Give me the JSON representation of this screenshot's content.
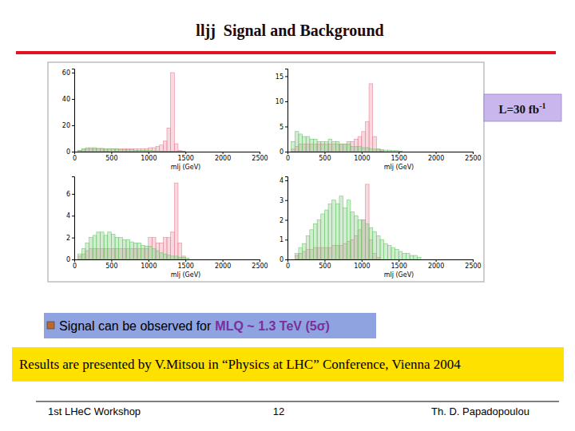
{
  "chart_data": [
    {
      "type": "histogram",
      "xlabel": "mlj (GeV)",
      "xlim": [
        0,
        2500
      ],
      "ylim": [
        0,
        63
      ],
      "xticks": [
        0,
        500,
        1000,
        1500,
        2000,
        2500
      ],
      "yticks": [
        0,
        20,
        40,
        60
      ],
      "bins": [
        0,
        50,
        100,
        150,
        200,
        250,
        300,
        350,
        400,
        450,
        500,
        550,
        600,
        650,
        700,
        750,
        800,
        850,
        900,
        950,
        1000,
        1050,
        1100,
        1150,
        1200,
        1250,
        1300,
        1350,
        1400,
        1450,
        1500,
        1550,
        1600,
        1650,
        1700,
        1750,
        1800,
        1850,
        1900,
        1950,
        2000,
        2050,
        2100,
        2150,
        2200,
        2250,
        2300,
        2350,
        2400,
        2450,
        2500
      ],
      "series": [
        {
          "color": "#e8899a",
          "values": [
            0,
            1,
            2,
            2,
            2,
            2,
            2,
            2,
            2,
            2,
            2,
            2,
            2,
            2,
            2,
            2,
            2,
            2,
            2,
            2,
            3,
            3,
            4,
            5,
            8,
            18,
            60,
            6,
            1,
            0.5,
            0,
            0,
            0,
            0,
            0,
            0,
            0,
            0,
            0,
            0,
            0,
            0,
            0,
            0,
            0,
            0,
            0,
            0,
            0,
            0
          ]
        },
        {
          "color": "#74c874",
          "values": [
            0,
            1,
            2,
            3,
            3,
            3,
            2.5,
            2.5,
            2,
            2,
            2,
            2,
            1.5,
            1.5,
            1.5,
            1.5,
            1,
            1,
            1,
            1,
            0.8,
            0.6,
            0.5,
            0.5,
            0.4,
            0.3,
            0.3,
            0.2,
            0.2,
            0.1,
            0,
            0,
            0,
            0,
            0,
            0,
            0,
            0,
            0,
            0,
            0,
            0,
            0,
            0,
            0,
            0,
            0,
            0,
            0,
            0
          ]
        }
      ]
    },
    {
      "type": "histogram",
      "xlabel": "mlj (GeV)",
      "xlim": [
        0,
        2500
      ],
      "ylim": [
        0,
        16.5
      ],
      "xticks": [
        0,
        500,
        1000,
        1500,
        2000,
        2500
      ],
      "yticks": [
        0,
        5,
        10,
        15
      ],
      "bins": [
        0,
        50,
        100,
        150,
        200,
        250,
        300,
        350,
        400,
        450,
        500,
        550,
        600,
        650,
        700,
        750,
        800,
        850,
        900,
        950,
        1000,
        1050,
        1100,
        1150,
        1200,
        1250,
        1300,
        1350,
        1400,
        1450,
        1500,
        1550,
        1600,
        1650,
        1700,
        1750,
        1800,
        1850,
        1900,
        1950,
        2000,
        2050,
        2100,
        2150,
        2200,
        2250,
        2300,
        2350,
        2400,
        2450,
        2500
      ],
      "series": [
        {
          "color": "#e8899a",
          "values": [
            0,
            0.5,
            1,
            1.5,
            1.5,
            1.5,
            1.5,
            1.5,
            1.5,
            1.5,
            1.5,
            1.5,
            1.5,
            1.5,
            1.5,
            1.5,
            2,
            2,
            2.5,
            3,
            4,
            6,
            13.5,
            3,
            0.5,
            0.3,
            0,
            0,
            0,
            0,
            0,
            0,
            0,
            0,
            0,
            0,
            0,
            0,
            0,
            0,
            0,
            0,
            0,
            0,
            0,
            0,
            0,
            0,
            0,
            0
          ]
        },
        {
          "color": "#74c874",
          "values": [
            0,
            2,
            4,
            3.5,
            3,
            3,
            2.5,
            2.5,
            2,
            2,
            2,
            2.5,
            2,
            2,
            1.5,
            1.5,
            1.5,
            1,
            1,
            1,
            0.8,
            0.8,
            0.6,
            0.5,
            0.5,
            0.4,
            0.3,
            0.3,
            0.2,
            0.2,
            0.1,
            0,
            0,
            0,
            0,
            0,
            0,
            0,
            0,
            0,
            0,
            0,
            0,
            0,
            0,
            0,
            0,
            0,
            0,
            0
          ]
        }
      ]
    },
    {
      "type": "histogram",
      "xlabel": "mlj (GeV)",
      "xlim": [
        0,
        2500
      ],
      "ylim": [
        0,
        7.6
      ],
      "xticks": [
        0,
        500,
        1000,
        1500,
        2000,
        2500
      ],
      "yticks": [
        0,
        2,
        4,
        6
      ],
      "bins": [
        0,
        50,
        100,
        150,
        200,
        250,
        300,
        350,
        400,
        450,
        500,
        550,
        600,
        650,
        700,
        750,
        800,
        850,
        900,
        950,
        1000,
        1050,
        1100,
        1150,
        1200,
        1250,
        1300,
        1350,
        1400,
        1450,
        1500,
        1550,
        1600,
        1650,
        1700,
        1750,
        1800,
        1850,
        1900,
        1950,
        2000,
        2050,
        2100,
        2150,
        2200,
        2250,
        2300,
        2350,
        2400,
        2450,
        2500
      ],
      "series": [
        {
          "color": "#e8899a",
          "values": [
            0,
            0.3,
            0.5,
            0.8,
            1,
            1,
            1,
            1,
            1,
            1,
            1,
            1,
            1,
            1,
            1,
            1,
            1,
            1,
            1,
            1,
            2,
            2,
            1.5,
            1.5,
            2,
            2,
            2.5,
            7,
            1.5,
            0.3,
            0,
            0,
            0,
            0,
            0,
            0,
            0,
            0,
            0,
            0,
            0,
            0,
            0,
            0,
            0,
            0,
            0,
            0,
            0,
            0
          ]
        },
        {
          "color": "#74c874",
          "values": [
            0,
            0.5,
            1,
            1.5,
            2,
            2.2,
            2.5,
            2.5,
            2.2,
            2.5,
            2.3,
            2,
            2,
            1.8,
            1.8,
            1.6,
            1.5,
            1.5,
            1.3,
            1.2,
            1.2,
            1,
            0.8,
            0.6,
            0.5,
            0.4,
            0.3,
            0.3,
            0.2,
            0.2,
            0.1,
            0,
            0,
            0,
            0,
            0,
            0,
            0,
            0,
            0,
            0,
            0,
            0,
            0,
            0,
            0,
            0,
            0,
            0,
            0
          ]
        }
      ]
    },
    {
      "type": "histogram",
      "xlabel": "mlj (GeV)",
      "xlim": [
        0,
        2500
      ],
      "ylim": [
        0,
        4.2
      ],
      "xticks": [
        0,
        500,
        1000,
        1500,
        2000,
        2500
      ],
      "yticks": [
        0,
        1,
        2,
        3,
        4
      ],
      "bins": [
        0,
        50,
        100,
        150,
        200,
        250,
        300,
        350,
        400,
        450,
        500,
        550,
        600,
        650,
        700,
        750,
        800,
        850,
        900,
        950,
        1000,
        1050,
        1100,
        1150,
        1200,
        1250,
        1300,
        1350,
        1400,
        1450,
        1500,
        1550,
        1600,
        1650,
        1700,
        1750,
        1800,
        1850,
        1900,
        1950,
        2000,
        2050,
        2100,
        2150,
        2200,
        2250,
        2300,
        2350,
        2400,
        2450,
        2500
      ],
      "series": [
        {
          "color": "#e8899a",
          "values": [
            0,
            0,
            0.2,
            0.3,
            0.4,
            0.5,
            0.5,
            0.6,
            0.6,
            0.6,
            0.6,
            0.6,
            0.7,
            0.7,
            0.7,
            0.8,
            0.9,
            1,
            1.2,
            1.5,
            2,
            3.8,
            1,
            0.3,
            0.1,
            0,
            0,
            0,
            0,
            0,
            0,
            0,
            0,
            0,
            0,
            0,
            0,
            0,
            0,
            0,
            0,
            0,
            0,
            0,
            0,
            0,
            0,
            0,
            0,
            0
          ]
        },
        {
          "color": "#74c874",
          "values": [
            0,
            0,
            0.3,
            0.6,
            0.8,
            1.2,
            1.5,
            1.8,
            2,
            2.3,
            2.5,
            2.8,
            3,
            2.8,
            3.2,
            2.6,
            3,
            2.4,
            2.2,
            2,
            2,
            1.8,
            1.6,
            1.4,
            1.2,
            1,
            0.8,
            0.7,
            0.6,
            0.5,
            0.4,
            0.3,
            0.3,
            0.2,
            0.2,
            0.1,
            0,
            0,
            0,
            0,
            0,
            0,
            0,
            0,
            0,
            0,
            0,
            0,
            0,
            0
          ]
        }
      ]
    }
  ],
  "slide": {
    "title": "lljj  Signal and Background",
    "luminosity": {
      "text": "L=30 fb",
      "sup": "-1"
    },
    "bullet": {
      "text": "Signal can be observed for",
      "highlight": "MLQ ~ 1.3 TeV (5σ)"
    },
    "note": "Results are presented by V.Mitsou in “Physics at LHC” Conference, Vienna 2004",
    "footer": {
      "left": "1st LHeC Workshop",
      "page": "12",
      "right": "Th. D. Papadopoulou"
    }
  }
}
